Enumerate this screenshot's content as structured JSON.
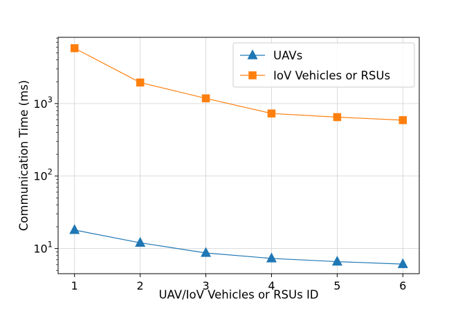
{
  "chart_data": {
    "type": "line",
    "xlabel": "UAV/IoV Vehicles or RSUs ID",
    "ylabel": "Communication Time (ms)",
    "x": [
      1,
      2,
      3,
      4,
      5,
      6
    ],
    "xlim": [
      0.75,
      6.25
    ],
    "ylim": [
      4.5,
      8200
    ],
    "yscale": "log",
    "yticks": [
      10,
      100,
      1000
    ],
    "ytick_labels": [
      {
        "base": "10",
        "exp": "1"
      },
      {
        "base": "10",
        "exp": "2"
      },
      {
        "base": "10",
        "exp": "3"
      }
    ],
    "grid": true,
    "legend_position": "top-right",
    "series": [
      {
        "name": "UAVs",
        "color": "#1f77b4",
        "marker": "triangle",
        "values": [
          18,
          12,
          8.7,
          7.3,
          6.6,
          6.1
        ]
      },
      {
        "name": "IoV Vehicles or RSUs",
        "color": "#ff7f0e",
        "marker": "square",
        "values": [
          5800,
          1950,
          1180,
          730,
          650,
          590
        ]
      }
    ]
  }
}
